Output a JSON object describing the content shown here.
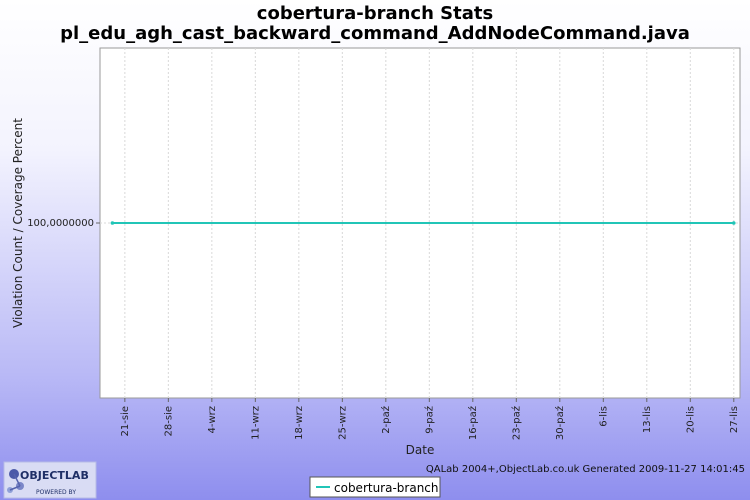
{
  "chart_data": {
    "type": "line",
    "title": "cobertura-branch  Stats",
    "subtitle": "pl_edu_agh_cast_backward_command_AddNodeCommand.java",
    "xlabel": "Date",
    "ylabel": "Violation Count / Coverage Percent",
    "x_ticks": [
      "21-sie",
      "28-sie",
      "4-wrz",
      "11-wrz",
      "18-wrz",
      "25-wrz",
      "2-paź",
      "9-paź",
      "16-paź",
      "23-paź",
      "30-paź",
      "6-lis",
      "13-lis",
      "20-lis",
      "27-lis"
    ],
    "y_ticks": [
      "100,0000000"
    ],
    "ylim": [
      0,
      200
    ],
    "x": [
      "2009-08-19",
      "2009-11-27"
    ],
    "x_range": [
      "2009-08-17",
      "2009-11-28"
    ],
    "series": [
      {
        "name": "cobertura-branch",
        "color": "#21c5b7",
        "x": [
          "2009-08-19",
          "2009-11-27"
        ],
        "values": [
          100,
          100
        ]
      }
    ],
    "grid": true,
    "legend_position": "bottom-center"
  },
  "footer": {
    "credit": "QALab 2004+,ObjectLab.co.uk Generated 2009-11-27 14:01:45"
  },
  "logo": {
    "name": "OBJECTLAB",
    "tagline": "POWERED BY"
  }
}
